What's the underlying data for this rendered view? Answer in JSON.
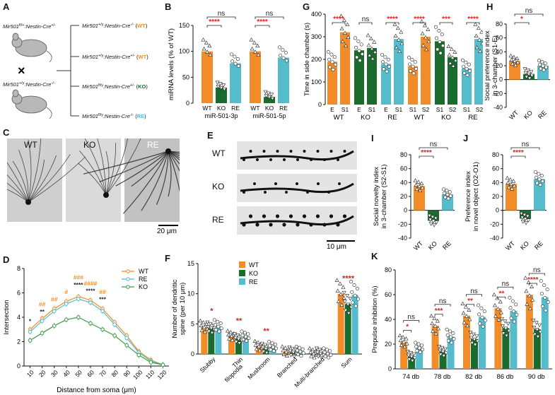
{
  "panel_labels": [
    "A",
    "B",
    "C",
    "D",
    "E",
    "F",
    "G",
    "H",
    "I",
    "J",
    "K"
  ],
  "colors": {
    "wt": "#f28c28",
    "ko": "#1b6b2f",
    "re": "#55bccc",
    "sig": "#e02020",
    "ns": "#222222"
  },
  "panelA": {
    "parent_top": "Mir501",
    "parent_top_sup": "fl/+",
    "parent_top_rest": ":Nestin-Cre",
    "parent_top_sup2": "+/-",
    "cross": "×",
    "parent_bot": "Mir501",
    "parent_bot_sup": "+/y",
    "parent_bot_rest": ":Nestin-Cre",
    "parent_bot_sup2": "-/-",
    "offspring": [
      {
        "g": "Mir501",
        "s1": "+/y",
        "r": ":Nestin-Cre",
        "s2": "-/-",
        "tag": "WT"
      },
      {
        "g": "Mir501",
        "s1": "+/y",
        "r": ":Nestin-Cre",
        "s2": "+/-",
        "tag": "WT"
      },
      {
        "g": "Mir501",
        "s1": "fl/y",
        "r": ":Nestin-Cre",
        "s2": "+/-",
        "tag": "KO"
      },
      {
        "g": "Mir501",
        "s1": "fl/y",
        "r": ":Nestin-Cre",
        "s2": "-/-",
        "tag": "RE"
      }
    ]
  },
  "panelC": {
    "labels": [
      "WT",
      "KO",
      "RE"
    ],
    "scale": "20 μm"
  },
  "panelE": {
    "labels": [
      "WT",
      "KO",
      "RE"
    ],
    "scale": "10 μm"
  },
  "chart_data": [
    {
      "id": "B",
      "type": "bar",
      "ylabel": "miRNA levels (% of WT)",
      "ylim": [
        0,
        150
      ],
      "yticks": [
        0,
        50,
        100,
        150
      ],
      "categories": [
        "WT",
        "KO",
        "RE",
        "WT",
        "KO",
        "RE"
      ],
      "groups": [
        "miR-501-3p",
        "miR-501-5p"
      ],
      "values": [
        100,
        30,
        77,
        100,
        12,
        88
      ],
      "sig": [
        {
          "a": 0,
          "b": 1,
          "t": "****",
          "c": "sig"
        },
        {
          "a": 0,
          "b": 2,
          "t": "ns",
          "c": "ns"
        },
        {
          "a": 3,
          "b": 4,
          "t": "****",
          "c": "sig"
        },
        {
          "a": 3,
          "b": 5,
          "t": "ns",
          "c": "ns"
        }
      ]
    },
    {
      "id": "D",
      "type": "line",
      "xlabel": "Distance from soma (μm)",
      "ylabel": "Intersection",
      "xlim": [
        5,
        125
      ],
      "ylim": [
        0,
        8
      ],
      "yticks": [
        0,
        2,
        4,
        6,
        8
      ],
      "x": [
        10,
        20,
        30,
        40,
        50,
        60,
        70,
        80,
        90,
        100,
        110,
        120
      ],
      "series": [
        {
          "name": "WT",
          "values": [
            3.0,
            3.9,
            4.7,
            5.3,
            5.7,
            5.4,
            4.7,
            3.6,
            2.5,
            1.2,
            0.5,
            0.1
          ]
        },
        {
          "name": "RE",
          "values": [
            2.8,
            3.7,
            4.5,
            5.1,
            5.5,
            5.2,
            4.5,
            3.4,
            2.3,
            1.1,
            0.4,
            0.1
          ]
        },
        {
          "name": "KO",
          "values": [
            2.1,
            2.7,
            3.3,
            3.8,
            4.0,
            3.5,
            3.0,
            2.5,
            1.7,
            0.9,
            0.3,
            0.1
          ]
        }
      ],
      "annotations": [
        {
          "x": 10,
          "y": 3.5,
          "t": "*",
          "c": "ns"
        },
        {
          "x": 20,
          "y": 4.3,
          "t": "**",
          "c": "ns"
        },
        {
          "x": 20,
          "y": 4.9,
          "t": "##",
          "c": "wt"
        },
        {
          "x": 30,
          "y": 5.3,
          "t": "##",
          "c": "wt"
        },
        {
          "x": 40,
          "y": 5.9,
          "t": "#",
          "c": "wt"
        },
        {
          "x": 50,
          "y": 6.5,
          "t": "****",
          "c": "ns"
        },
        {
          "x": 50,
          "y": 7.1,
          "t": "###",
          "c": "wt"
        },
        {
          "x": 60,
          "y": 6.0,
          "t": "****",
          "c": "ns"
        },
        {
          "x": 60,
          "y": 6.6,
          "t": "####",
          "c": "wt"
        },
        {
          "x": 70,
          "y": 5.3,
          "t": "***",
          "c": "ns"
        },
        {
          "x": 70,
          "y": 5.9,
          "t": "##",
          "c": "wt"
        }
      ]
    },
    {
      "id": "F",
      "type": "bar",
      "ylabel": "Number of dendritic spine (per 10 μm)",
      "ylim": [
        0,
        15
      ],
      "yticks": [
        0,
        5,
        10,
        15
      ],
      "categories": [
        "Stubby",
        "Thin filopodia",
        "Mushroom",
        "Branched",
        "Multi-branched",
        "Sum"
      ],
      "series": [
        {
          "name": "WT",
          "values": [
            4.5,
            3.0,
            1.3,
            0.4,
            0.1,
            10.0
          ]
        },
        {
          "name": "KO",
          "values": [
            4.3,
            2.5,
            0.9,
            0.3,
            0.1,
            8.3
          ]
        },
        {
          "name": "RE",
          "values": [
            4.6,
            2.9,
            1.2,
            0.4,
            0.1,
            9.8
          ]
        }
      ],
      "stars": [
        {
          "cat": 0,
          "t": "*"
        },
        {
          "cat": 1,
          "t": "**"
        },
        {
          "cat": 2,
          "t": "**"
        },
        {
          "cat": 5,
          "t": "****"
        }
      ]
    },
    {
      "id": "G",
      "type": "bar",
      "ylabel": "Time in side chamber (s)",
      "ylim": [
        0,
        400
      ],
      "yticks": [
        0,
        100,
        200,
        300,
        400
      ],
      "tick_labels": [
        "E",
        "S1",
        "E",
        "S1",
        "E",
        "S1",
        "S1",
        "S2",
        "S1",
        "S2",
        "S1",
        "S2"
      ],
      "group_labels": [
        "WT",
        "KO",
        "RE",
        "WT",
        "KO",
        "RE"
      ],
      "values": [
        190,
        320,
        240,
        250,
        180,
        290,
        170,
        300,
        280,
        210,
        160,
        290
      ],
      "sig": [
        {
          "a": 0,
          "b": 1,
          "t": "****",
          "c": "sig"
        },
        {
          "a": 2,
          "b": 3,
          "t": "ns",
          "c": "ns"
        },
        {
          "a": 4,
          "b": 5,
          "t": "****",
          "c": "sig"
        },
        {
          "a": 6,
          "b": 7,
          "t": "****",
          "c": "sig"
        },
        {
          "a": 8,
          "b": 9,
          "t": "***",
          "c": "sig"
        },
        {
          "a": 10,
          "b": 11,
          "t": "****",
          "c": "sig"
        }
      ]
    },
    {
      "id": "H",
      "type": "bar",
      "ylabel": "Social preference  index in 3-chamber (S1-E)",
      "ylim": [
        -40,
        80
      ],
      "yticks": [
        -40,
        -20,
        0,
        20,
        40,
        60,
        80
      ],
      "categories": [
        "WT",
        "KO",
        "RE"
      ],
      "values": [
        27,
        8,
        20
      ],
      "sig": [
        {
          "a": 0,
          "b": 1,
          "t": "*",
          "c": "sig"
        },
        {
          "a": 0,
          "b": 2,
          "t": "ns",
          "c": "ns"
        }
      ]
    },
    {
      "id": "I",
      "type": "bar",
      "ylabel": "Social novelty  index in 3-chamber (S2-S1)",
      "ylim": [
        -40,
        80
      ],
      "yticks": [
        -40,
        -20,
        0,
        20,
        40,
        60,
        80
      ],
      "categories": [
        "WT",
        "KO",
        "RE"
      ],
      "values": [
        35,
        -15,
        23
      ],
      "sig": [
        {
          "a": 0,
          "b": 1,
          "t": "****",
          "c": "sig"
        },
        {
          "a": 0,
          "b": 2,
          "t": "ns",
          "c": "ns"
        }
      ]
    },
    {
      "id": "J",
      "type": "bar",
      "ylabel": "Preference  index in novel object (O2-O1)",
      "ylim": [
        -40,
        80
      ],
      "yticks": [
        -40,
        -20,
        0,
        20,
        40,
        60,
        80
      ],
      "categories": [
        "WT",
        "KO",
        "RE"
      ],
      "values": [
        38,
        -12,
        45
      ],
      "sig": [
        {
          "a": 0,
          "b": 1,
          "t": "****",
          "c": "sig"
        },
        {
          "a": 0,
          "b": 2,
          "t": "ns",
          "c": "ns"
        }
      ]
    },
    {
      "id": "K",
      "type": "bar",
      "ylabel": "Prepulse inhibition (%)",
      "ylim": [
        0,
        80
      ],
      "yticks": [
        0,
        20,
        40,
        60,
        80
      ],
      "categories": [
        "74 db",
        "78 db",
        "82 db",
        "86 db",
        "90 db"
      ],
      "series": [
        {
          "name": "WT",
          "values": [
            22,
            35,
            43,
            49,
            60
          ]
        },
        {
          "name": "KO",
          "values": [
            10,
            14,
            24,
            33,
            32
          ]
        },
        {
          "name": "RE",
          "values": [
            17,
            26,
            42,
            47,
            58
          ]
        }
      ],
      "sig": [
        {
          "cat": 0,
          "t1": "*",
          "t2": "ns"
        },
        {
          "cat": 1,
          "t1": "***",
          "t2": "ns"
        },
        {
          "cat": 2,
          "t1": "**",
          "t2": "ns"
        },
        {
          "cat": 3,
          "t1": "**",
          "t2": "ns"
        },
        {
          "cat": 4,
          "t1": "****",
          "t2": "ns"
        }
      ]
    }
  ],
  "legend": {
    "wt": "WT",
    "ko": "KO",
    "re": "RE"
  },
  "b_groups": [
    "miR-501-3p",
    "miR-501-5p"
  ]
}
